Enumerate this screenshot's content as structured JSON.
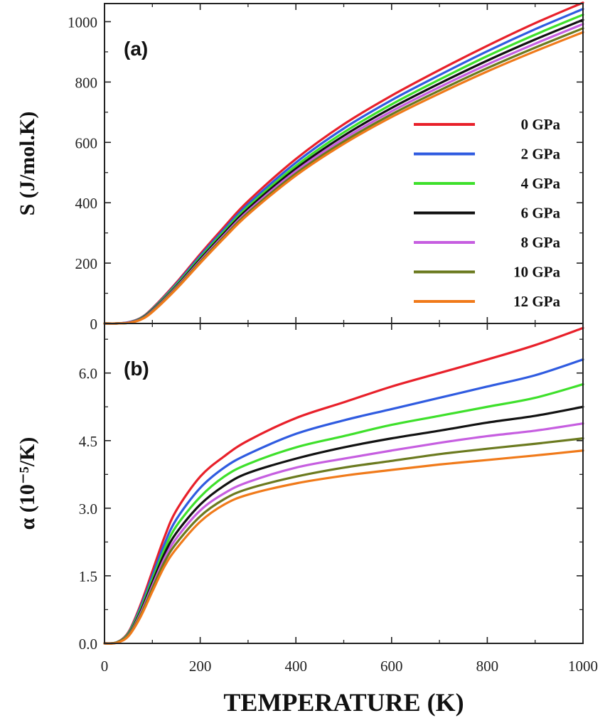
{
  "chart_data": [
    {
      "type": "line",
      "panel_label": "(a)",
      "ylabel": "S (J/mol.K)",
      "xlabel": "TEMPERATURE (K)",
      "xlim": [
        0,
        1000
      ],
      "ylim": [
        0,
        1060
      ],
      "x_ticks": [
        "0",
        "200",
        "400",
        "600",
        "800",
        "1000"
      ],
      "y_ticks": [
        "0",
        "200",
        "400",
        "600",
        "800",
        "1000"
      ],
      "y_tick_values": [
        0,
        200,
        400,
        600,
        800,
        1000
      ],
      "legend": "top-right",
      "x": [
        0,
        25,
        50,
        75,
        100,
        150,
        200,
        250,
        300,
        400,
        500,
        600,
        700,
        800,
        900,
        1000
      ],
      "series": [
        {
          "name": "0 GPa",
          "color": "#e8202a",
          "values": [
            0,
            0,
            4,
            18,
            50,
            135,
            230,
            320,
            405,
            545,
            660,
            755,
            840,
            920,
            995,
            1063
          ]
        },
        {
          "name": "2 GPa",
          "color": "#2f5be0",
          "values": [
            0,
            0,
            4,
            17,
            48,
            131,
            224,
            312,
            395,
            533,
            646,
            740,
            823,
            902,
            975,
            1042
          ]
        },
        {
          "name": "4 GPa",
          "color": "#3ee02b",
          "values": [
            0,
            0,
            3,
            16,
            46,
            127,
            218,
            305,
            387,
            522,
            633,
            726,
            808,
            886,
            957,
            1023
          ]
        },
        {
          "name": "6 GPa",
          "color": "#111111",
          "values": [
            0,
            0,
            3,
            15,
            44,
            123,
            213,
            299,
            380,
            513,
            622,
            714,
            795,
            871,
            941,
            1006
          ]
        },
        {
          "name": "8 GPa",
          "color": "#c65ee0",
          "values": [
            0,
            0,
            3,
            14,
            42,
            120,
            208,
            293,
            373,
            505,
            612,
            703,
            783,
            858,
            927,
            992
          ]
        },
        {
          "name": "10 GPa",
          "color": "#6b7a1f",
          "values": [
            0,
            0,
            2,
            13,
            40,
            117,
            204,
            288,
            367,
            497,
            603,
            693,
            772,
            846,
            914,
            978
          ]
        },
        {
          "name": "12 GPa",
          "color": "#f07a1a",
          "values": [
            0,
            0,
            2,
            12,
            38,
            114,
            200,
            283,
            361,
            490,
            595,
            684,
            762,
            835,
            902,
            965
          ]
        }
      ]
    },
    {
      "type": "line",
      "panel_label": "(b)",
      "ylabel": "α (10⁻⁵/K)",
      "xlabel": "TEMPERATURE (K)",
      "xlim": [
        0,
        1000
      ],
      "ylim": [
        0,
        7.1
      ],
      "x_ticks": [
        "0",
        "200",
        "400",
        "600",
        "800",
        "1000"
      ],
      "y_ticks": [
        "0.0",
        "1.5",
        "3.0",
        "4.5",
        "6.0"
      ],
      "y_tick_values": [
        0,
        1.5,
        3.0,
        4.5,
        6.0
      ],
      "x": [
        0,
        25,
        50,
        75,
        100,
        125,
        150,
        200,
        250,
        300,
        400,
        500,
        600,
        700,
        800,
        900,
        1000
      ],
      "series": [
        {
          "name": "0 GPa",
          "color": "#e8202a",
          "values": [
            0,
            0.02,
            0.25,
            0.85,
            1.6,
            2.35,
            2.95,
            3.7,
            4.15,
            4.5,
            5.0,
            5.35,
            5.7,
            6.0,
            6.3,
            6.62,
            7.0
          ]
        },
        {
          "name": "2 GPa",
          "color": "#2f5be0",
          "values": [
            0,
            0.02,
            0.23,
            0.8,
            1.5,
            2.2,
            2.75,
            3.45,
            3.9,
            4.2,
            4.65,
            4.95,
            5.2,
            5.45,
            5.7,
            5.95,
            6.3
          ]
        },
        {
          "name": "4 GPa",
          "color": "#3ee02b",
          "values": [
            0,
            0.02,
            0.22,
            0.75,
            1.42,
            2.08,
            2.6,
            3.25,
            3.7,
            3.98,
            4.35,
            4.6,
            4.85,
            5.05,
            5.25,
            5.45,
            5.75
          ]
        },
        {
          "name": "6 GPa",
          "color": "#111111",
          "values": [
            0,
            0.02,
            0.2,
            0.7,
            1.35,
            1.98,
            2.45,
            3.08,
            3.5,
            3.78,
            4.1,
            4.35,
            4.55,
            4.72,
            4.9,
            5.05,
            5.25
          ]
        },
        {
          "name": "8 GPa",
          "color": "#c65ee0",
          "values": [
            0,
            0.02,
            0.19,
            0.66,
            1.28,
            1.88,
            2.33,
            2.95,
            3.33,
            3.58,
            3.9,
            4.1,
            4.28,
            4.45,
            4.6,
            4.72,
            4.88
          ]
        },
        {
          "name": "10 GPa",
          "color": "#6b7a1f",
          "values": [
            0,
            0.02,
            0.18,
            0.62,
            1.22,
            1.8,
            2.22,
            2.82,
            3.2,
            3.43,
            3.7,
            3.9,
            4.05,
            4.2,
            4.32,
            4.43,
            4.55
          ]
        },
        {
          "name": "12 GPa",
          "color": "#f07a1a",
          "values": [
            0,
            0.01,
            0.16,
            0.58,
            1.15,
            1.7,
            2.1,
            2.7,
            3.08,
            3.3,
            3.55,
            3.72,
            3.85,
            3.97,
            4.07,
            4.17,
            4.28
          ]
        }
      ]
    }
  ]
}
